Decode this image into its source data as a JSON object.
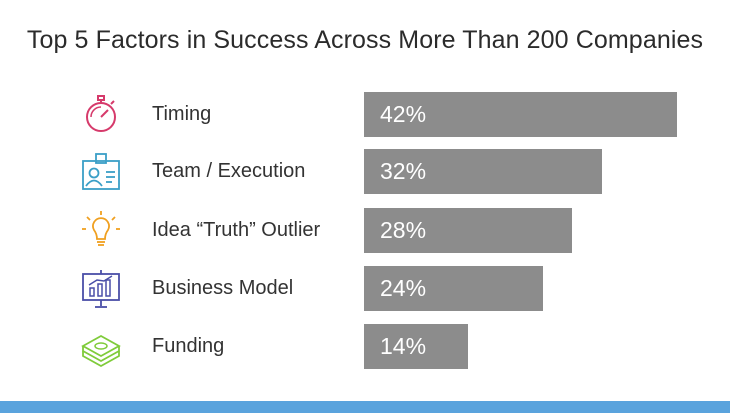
{
  "title": "Top 5 Factors in Success Across More Than 200 Companies",
  "colors": {
    "bar": "#8c8c8c",
    "footer_band": "#5aa3dd",
    "icon_timing": "#d63a6b",
    "icon_team": "#3a9fc7",
    "icon_idea": "#f0a020",
    "icon_business": "#4a4fa8",
    "icon_funding": "#7fcb3a"
  },
  "chart_data": {
    "type": "bar",
    "orientation": "horizontal",
    "categories": [
      "Timing",
      "Team / Execution",
      "Idea “Truth” Outlier",
      "Business Model",
      "Funding"
    ],
    "values": [
      42,
      32,
      28,
      24,
      14
    ],
    "value_labels": [
      "42%",
      "32%",
      "28%",
      "24%",
      "14%"
    ],
    "icons": [
      "stopwatch-icon",
      "id-badge-icon",
      "lightbulb-icon",
      "presentation-chart-icon",
      "money-stack-icon"
    ],
    "xlim": [
      0,
      43.8
    ],
    "title": "Top 5 Factors in Success Across More Than 200 Companies",
    "xlabel": "",
    "ylabel": ""
  }
}
